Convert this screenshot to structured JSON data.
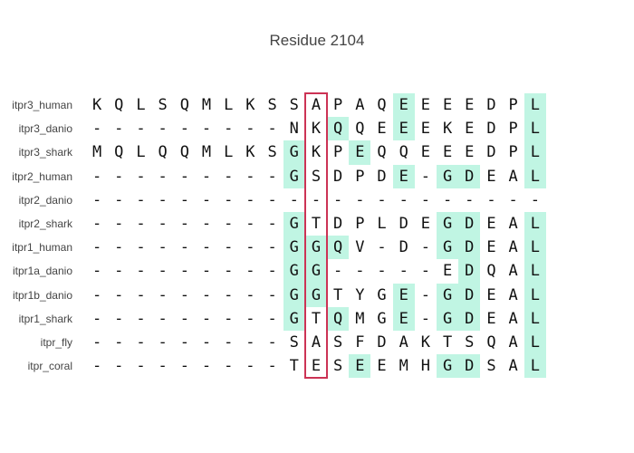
{
  "title": "Residue 2104",
  "highlight_color": "#c0f5e3",
  "focus_color": "#cc3355",
  "focus_column": 10,
  "rows": [
    {
      "label": "itpr3_human",
      "seq": "KQLSQMLKSSAPAQEEEEDPL",
      "hl": [
        14,
        20
      ]
    },
    {
      "label": "itpr3_danio",
      "seq": "---------NKQQEEEKEDPL",
      "hl": [
        11,
        14,
        20
      ]
    },
    {
      "label": "itpr3_shark",
      "seq": "MQLQQMLKSGKPEQQEEEDPL",
      "hl": [
        9,
        12,
        20
      ]
    },
    {
      "label": "itpr2_human",
      "seq": "---------GSDPDE-GDEAL",
      "hl": [
        9,
        14,
        16,
        17,
        20
      ]
    },
    {
      "label": "itpr2_danio",
      "seq": "---------------------",
      "hl": []
    },
    {
      "label": "itpr2_shark",
      "seq": "---------GTDPLDEGDEAL",
      "hl": [
        9,
        16,
        17,
        20
      ]
    },
    {
      "label": "itpr1_human",
      "seq": "---------GGQV-D-GDEAL",
      "hl": [
        9,
        10,
        11,
        16,
        17,
        20
      ]
    },
    {
      "label": "itpr1a_danio",
      "seq": "---------GG-----EDQAL",
      "hl": [
        9,
        10,
        17,
        20
      ]
    },
    {
      "label": "itpr1b_danio",
      "seq": "---------GGTYGE-GDEAL",
      "hl": [
        9,
        10,
        14,
        16,
        17,
        20
      ]
    },
    {
      "label": "itpr1_shark",
      "seq": "---------GTQMGE-GDEAL",
      "hl": [
        9,
        11,
        14,
        16,
        17,
        20
      ]
    },
    {
      "label": "itpr_fly",
      "seq": "---------SASFDAKTSQAL",
      "hl": [
        20
      ]
    },
    {
      "label": "itpr_coral",
      "seq": "---------TESEEMHGDSAL",
      "hl": [
        12,
        16,
        17,
        20
      ]
    }
  ]
}
